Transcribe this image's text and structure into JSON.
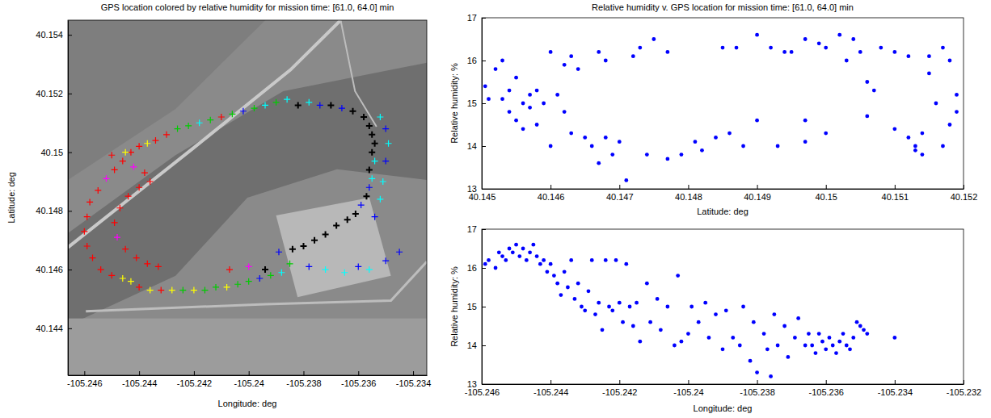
{
  "chart_data": [
    {
      "type": "scatter",
      "title": "GPS location colored by relative humidity for mission time: [61.0, 64.0] min",
      "x_label": "Longitude: deg",
      "y_label": "Latitude: deg",
      "marker": "plus",
      "xlim": [
        -105.2466,
        -105.2335
      ],
      "ylim": [
        40.1424,
        40.1545
      ],
      "xticks": [
        -105.246,
        -105.244,
        -105.242,
        -105.24,
        -105.238,
        -105.236,
        -105.234
      ],
      "yticks": [
        40.144,
        40.146,
        40.148,
        40.15,
        40.152,
        40.154
      ],
      "x": [
        -105.2443,
        -105.244,
        -105.2437,
        -105.2434,
        -105.243,
        -105.2426,
        -105.2422,
        -105.2418,
        -105.2414,
        -105.241,
        -105.2406,
        -105.2402,
        -105.2398,
        -105.2394,
        -105.239,
        -105.2386,
        -105.2382,
        -105.2378,
        -105.2374,
        -105.237,
        -105.2366,
        -105.2362,
        -105.2358,
        -105.2356,
        -105.2355,
        -105.2354,
        -105.2355,
        -105.2354,
        -105.2356,
        -105.2355,
        -105.2356,
        -105.2357,
        -105.2359,
        -105.2361,
        -105.2364,
        -105.2368,
        -105.2372,
        -105.2376,
        -105.238,
        -105.2384,
        -105.2389,
        -105.2394,
        -105.2352,
        -105.235,
        -105.2349,
        -105.235,
        -105.2351,
        -105.2352,
        -105.2354,
        -105.2443,
        -105.244,
        -105.2436,
        -105.2432,
        -105.2428,
        -105.2424,
        -105.242,
        -105.2416,
        -105.2412,
        -105.2408,
        -105.2404,
        -105.24,
        -105.2396,
        -105.2392,
        -105.2388,
        -105.2407,
        -105.24,
        -105.2385,
        -105.2378,
        -105.2372,
        -105.2365,
        -105.236,
        -105.235,
        -105.2345,
        -105.2356,
        -105.2446,
        -105.2449,
        -105.2452,
        -105.2455,
        -105.2458,
        -105.2459,
        -105.246,
        -105.2459,
        -105.2457,
        -105.2454,
        -105.245,
        -105.2446,
        -105.2442,
        -105.2438,
        -105.2436,
        -105.244,
        -105.2444,
        -105.2447,
        -105.2449,
        -105.2448,
        -105.2445,
        -105.2441,
        -105.2437,
        -105.2433,
        -105.2445,
        -105.245
      ],
      "values": [
        40.15,
        40.1502,
        40.1503,
        40.1504,
        40.1506,
        40.1508,
        40.1509,
        40.151,
        40.1511,
        40.1512,
        40.1513,
        40.1514,
        40.1515,
        40.1516,
        40.1517,
        40.1518,
        40.1516,
        40.1517,
        40.1516,
        40.1516,
        40.1515,
        40.1514,
        40.1512,
        40.1509,
        40.1506,
        40.1503,
        40.15,
        40.1497,
        40.1494,
        40.1491,
        40.1488,
        40.1485,
        40.1482,
        40.1479,
        40.1477,
        40.1475,
        40.1472,
        40.147,
        40.1468,
        40.1467,
        40.1466,
        40.146,
        40.1512,
        40.1508,
        40.1503,
        40.1497,
        40.149,
        40.1484,
        40.1478,
        40.1456,
        40.1454,
        40.1453,
        40.1453,
        40.1453,
        40.1453,
        40.1453,
        40.1453,
        40.1454,
        40.1454,
        40.1455,
        40.1456,
        40.1457,
        40.1458,
        40.1459,
        40.146,
        40.1461,
        40.1462,
        40.1461,
        40.146,
        40.1459,
        40.1461,
        40.1463,
        40.1466,
        40.146,
        40.1497,
        40.1494,
        40.1491,
        40.1487,
        40.1483,
        40.1478,
        40.1473,
        40.1468,
        40.1464,
        40.146,
        40.1458,
        40.1457,
        40.1495,
        40.1493,
        40.149,
        40.1488,
        40.1485,
        40.1481,
        40.1476,
        40.1471,
        40.1467,
        40.1464,
        40.1462,
        40.1461,
        40.15,
        40.1499
      ],
      "colors": [
        "#ff0000",
        "#ff0000",
        "#ffff00",
        "#ff0000",
        "#ff0000",
        "#00cc00",
        "#00cc00",
        "#00ffff",
        "#00cc00",
        "#ff0000",
        "#00cc00",
        "#0000ff",
        "#00cc00",
        "#00ffff",
        "#00cc00",
        "#00ffff",
        "#000000",
        "#00ffff",
        "#0000ff",
        "#000000",
        "#0000ff",
        "#000000",
        "#000000",
        "#000000",
        "#000000",
        "#000000",
        "#000000",
        "#00ffff",
        "#000000",
        "#00ffff",
        "#0000ff",
        "#000000",
        "#0000ff",
        "#000000",
        "#000000",
        "#000000",
        "#000000",
        "#000000",
        "#000000",
        "#000000",
        "#0000ff",
        "#000000",
        "#00ffff",
        "#0000ff",
        "#00ffff",
        "#0000ff",
        "#00ffff",
        "#00ffff",
        "#0000ff",
        "#ffff00",
        "#ff0000",
        "#ffff00",
        "#ff0000",
        "#ffff00",
        "#00cc00",
        "#ffff00",
        "#00cc00",
        "#00cc00",
        "#ffff00",
        "#00cc00",
        "#00cc00",
        "#0000ff",
        "#00cc00",
        "#00ffff",
        "#ff0000",
        "#ff00ff",
        "#00cc00",
        "#0000ff",
        "#00ffff",
        "#00ffff",
        "#0000ff",
        "#0000ff",
        "#0000ff",
        "#00ffff",
        "#ff0000",
        "#ff0000",
        "#ff00ff",
        "#ff0000",
        "#ff0000",
        "#ff0000",
        "#ff0000",
        "#ff0000",
        "#ff0000",
        "#ff0000",
        "#ff0000",
        "#ffff00",
        "#ff00ff",
        "#ff0000",
        "#ff0000",
        "#ff0000",
        "#ff0000",
        "#ff0000",
        "#ff0000",
        "#ff00ff",
        "#ff0000",
        "#ff0000",
        "#ff0000",
        "#ff0000",
        "#ffff00",
        "#ff0000"
      ]
    },
    {
      "type": "scatter",
      "title": "Relative humidity v. GPS location for mission time: [61.0, 64.0] min",
      "x_label": "Latitude: deg",
      "y_label": "Relative humidity: %",
      "marker": "dot",
      "color": "#0000ff",
      "xlim": [
        40.145,
        40.152
      ],
      "ylim": [
        13,
        17
      ],
      "xticks": [
        40.145,
        40.146,
        40.147,
        40.148,
        40.149,
        40.15,
        40.151,
        40.152
      ],
      "yticks": [
        13,
        14,
        15,
        16,
        17
      ],
      "x": [
        40.14505,
        40.1451,
        40.1452,
        40.1453,
        40.1453,
        40.1454,
        40.1454,
        40.1455,
        40.1455,
        40.1456,
        40.1456,
        40.1457,
        40.1457,
        40.1458,
        40.1458,
        40.1459,
        40.146,
        40.146,
        40.1461,
        40.1462,
        40.1463,
        40.1464,
        40.1465,
        40.1466,
        40.1467,
        40.1467,
        40.1468,
        40.1469,
        40.147,
        40.1471,
        40.1472,
        40.1474,
        40.1475,
        40.1477,
        40.1477,
        40.1479,
        40.1481,
        40.1482,
        40.1484,
        40.1486,
        40.1488,
        40.149,
        40.149,
        40.1493,
        40.1495,
        40.1497,
        40.15,
        40.15,
        40.1503,
        40.1505,
        40.1506,
        40.1508,
        40.151,
        40.1512,
        40.1514,
        40.1515,
        40.1515,
        40.1516,
        40.1517,
        40.1517,
        40.1518,
        40.1518,
        40.1519,
        40.1519,
        40.1497,
        40.1499,
        40.1502,
        40.1504,
        40.1506,
        40.1507,
        40.1487,
        40.1485,
        40.1492,
        40.1494,
        40.1473,
        40.1468,
        40.1463,
        40.1462,
        40.151,
        40.1512,
        40.1513,
        40.1514,
        40.1513,
        40.1497
      ],
      "values": [
        15.4,
        15.1,
        15.8,
        16.0,
        15.1,
        14.8,
        15.3,
        15.6,
        14.6,
        15.0,
        14.4,
        15.2,
        14.9,
        15.3,
        14.5,
        15.0,
        16.2,
        14.0,
        15.2,
        14.8,
        14.3,
        15.8,
        14.2,
        14.0,
        13.6,
        16.2,
        14.2,
        13.8,
        14.1,
        13.2,
        16.1,
        13.8,
        16.5,
        13.7,
        16.2,
        13.8,
        14.1,
        13.9,
        14.2,
        14.3,
        14.0,
        16.6,
        14.6,
        14.0,
        16.2,
        14.1,
        16.3,
        14.3,
        16.0,
        16.2,
        14.7,
        16.3,
        14.4,
        16.1,
        14.3,
        15.7,
        16.1,
        15.0,
        14.0,
        16.3,
        14.5,
        16.0,
        15.2,
        14.8,
        16.5,
        16.4,
        16.6,
        16.5,
        15.5,
        15.3,
        16.3,
        16.3,
        16.3,
        16.2,
        16.3,
        16.0,
        16.1,
        15.9,
        16.2,
        14.2,
        14.0,
        13.8,
        13.9,
        14.6
      ]
    },
    {
      "type": "scatter",
      "x_label": "Longitude: deg",
      "y_label": "Relative humidity: %",
      "marker": "dot",
      "color": "#0000ff",
      "xlim": [
        -105.246,
        -105.232
      ],
      "ylim": [
        13,
        17
      ],
      "xticks": [
        -105.246,
        -105.244,
        -105.242,
        -105.24,
        -105.238,
        -105.236,
        -105.234,
        -105.232
      ],
      "yticks": [
        13,
        14,
        15,
        16,
        17
      ],
      "x": [
        -105.2459,
        -105.2458,
        -105.2456,
        -105.2455,
        -105.2454,
        -105.2453,
        -105.2452,
        -105.2451,
        -105.245,
        -105.2449,
        -105.2448,
        -105.2447,
        -105.2446,
        -105.2445,
        -105.2444,
        -105.2443,
        -105.2442,
        -105.2441,
        -105.244,
        -105.2439,
        -105.2438,
        -105.2437,
        -105.2436,
        -105.2435,
        -105.2434,
        -105.2433,
        -105.2432,
        -105.2431,
        -105.243,
        -105.2429,
        -105.2428,
        -105.2427,
        -105.2426,
        -105.2425,
        -105.2424,
        -105.2423,
        -105.2422,
        -105.2421,
        -105.242,
        -105.2419,
        -105.2418,
        -105.2417,
        -105.2416,
        -105.2415,
        -105.2414,
        -105.2412,
        -105.2411,
        -105.2409,
        -105.2408,
        -105.2406,
        -105.2404,
        -105.2403,
        -105.2402,
        -105.24,
        -105.2399,
        -105.2397,
        -105.2395,
        -105.2394,
        -105.2392,
        -105.239,
        -105.2389,
        -105.2387,
        -105.2385,
        -105.2384,
        -105.2382,
        -105.2381,
        -105.238,
        -105.2378,
        -105.2377,
        -105.2376,
        -105.2375,
        -105.2374,
        -105.2372,
        -105.2371,
        -105.2369,
        -105.2368,
        -105.2366,
        -105.2365,
        -105.2364,
        -105.2363,
        -105.2362,
        -105.2361,
        -105.236,
        -105.2359,
        -105.2358,
        -105.2357,
        -105.2356,
        -105.2355,
        -105.2354,
        -105.2353,
        -105.2352,
        -105.2351,
        -105.235,
        -105.2349,
        -105.2348,
        -105.234
      ],
      "values": [
        16.1,
        16.2,
        16.0,
        16.4,
        16.3,
        16.2,
        16.5,
        16.4,
        16.6,
        16.3,
        16.5,
        16.2,
        16.4,
        16.6,
        16.3,
        16.1,
        16.2,
        15.9,
        16.1,
        15.8,
        15.6,
        15.3,
        15.9,
        15.5,
        16.2,
        15.2,
        15.6,
        15.0,
        14.9,
        15.4,
        16.2,
        14.8,
        15.1,
        14.4,
        16.2,
        15.0,
        14.9,
        16.2,
        15.1,
        14.6,
        16.1,
        15.0,
        14.5,
        15.1,
        14.1,
        15.6,
        14.6,
        15.2,
        14.4,
        15.0,
        14.0,
        15.8,
        14.1,
        14.3,
        15.0,
        14.6,
        15.1,
        14.2,
        14.8,
        13.9,
        14.9,
        14.2,
        14.0,
        15.0,
        13.6,
        14.6,
        13.3,
        14.3,
        13.9,
        13.2,
        14.8,
        14.0,
        14.5,
        13.7,
        14.2,
        14.7,
        14.0,
        14.3,
        14.0,
        13.8,
        14.3,
        14.1,
        13.9,
        14.2,
        14.0,
        13.8,
        14.1,
        14.3,
        14.0,
        13.9,
        14.2,
        14.6,
        14.5,
        14.4,
        14.3,
        14.2
      ]
    }
  ]
}
